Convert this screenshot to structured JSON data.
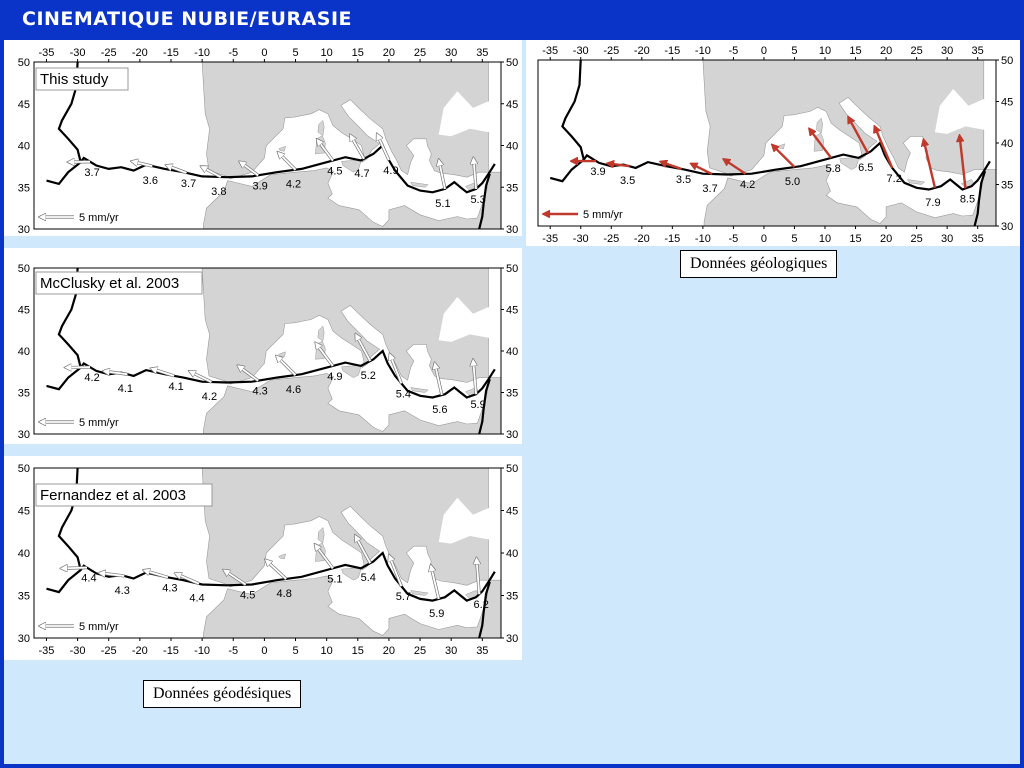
{
  "title": "CINEMATIQUE NUBIE/EURASIE",
  "captions": {
    "geodetic": "Données géodésiques",
    "geologic": "Données géologiques"
  },
  "axes": {
    "lon_ticks": [
      "-35",
      "-30",
      "-25",
      "-20",
      "-15",
      "-10",
      "-5",
      "0",
      "5",
      "10",
      "15",
      "20",
      "25",
      "30",
      "35"
    ],
    "lat_ticks": [
      "50",
      "45",
      "40",
      "35",
      "30"
    ]
  },
  "panels": [
    {
      "id": "this-study",
      "label": "This study",
      "scale_label": "5   mm/yr",
      "vectors": [
        {
          "lon": -28,
          "text": "3.7"
        },
        {
          "lon": -18,
          "text": "3.6"
        },
        {
          "lon": -12.5,
          "text": "3.7"
        },
        {
          "lon": -7,
          "text": "3.8"
        },
        {
          "lon": -1,
          "text": "3.9"
        },
        {
          "lon": 5,
          "text": "4.2"
        },
        {
          "lon": 11,
          "text": "4.5"
        },
        {
          "lon": 16,
          "text": "4.7"
        },
        {
          "lon": 20,
          "text": "4.9"
        },
        {
          "lon": 29,
          "text": "5.1"
        },
        {
          "lon": 34,
          "text": "5.3"
        }
      ],
      "arrow_color": "#ffffff"
    },
    {
      "id": "mcclusky",
      "label": "McClusky et al. 2003",
      "scale_label": "5 mm/yr",
      "vectors": [
        {
          "lon": -28,
          "text": "4.2"
        },
        {
          "lon": -22,
          "text": "4.1"
        },
        {
          "lon": -14.5,
          "text": "4.1"
        },
        {
          "lon": -8.5,
          "text": "4.2"
        },
        {
          "lon": -1,
          "text": "4.3"
        },
        {
          "lon": 5,
          "text": "4.6"
        },
        {
          "lon": 11,
          "text": "4.9"
        },
        {
          "lon": 17,
          "text": "5.2"
        },
        {
          "lon": 22,
          "text": "5.4"
        },
        {
          "lon": 28.5,
          "text": "5.6"
        },
        {
          "lon": 34,
          "text": "5.9"
        }
      ],
      "arrow_color": "#ffffff"
    },
    {
      "id": "fernandez",
      "label": "Fernandez et al. 2003",
      "scale_label": "5 mm/yr",
      "vectors": [
        {
          "lon": -28.5,
          "text": "4.4"
        },
        {
          "lon": -22.5,
          "text": "4.3"
        },
        {
          "lon": -15.5,
          "text": "4.3"
        },
        {
          "lon": -10.5,
          "text": "4.4"
        },
        {
          "lon": -3,
          "text": "4.5"
        },
        {
          "lon": 3.5,
          "text": "4.8"
        },
        {
          "lon": 11,
          "text": "5.1"
        },
        {
          "lon": 17,
          "text": "5.4"
        },
        {
          "lon": 22,
          "text": "5.7"
        },
        {
          "lon": 28,
          "text": "5.9"
        },
        {
          "lon": 34.5,
          "text": "6.2"
        }
      ],
      "arrow_color": "#ffffff"
    },
    {
      "id": "geologic",
      "label": "",
      "scale_label": "5 mm/yr",
      "vectors": [
        {
          "lon": -27.5,
          "text": "3.9"
        },
        {
          "lon": -22,
          "text": "3.5"
        },
        {
          "lon": -13.5,
          "text": "3.5"
        },
        {
          "lon": -8.5,
          "text": "3.7"
        },
        {
          "lon": -3,
          "text": "4.2"
        },
        {
          "lon": 5,
          "text": "5.0"
        },
        {
          "lon": 11,
          "text": "5.8"
        },
        {
          "lon": 17,
          "text": "6.5"
        },
        {
          "lon": 21,
          "text": "7.2"
        },
        {
          "lon": 28,
          "text": "7.9"
        },
        {
          "lon": 33,
          "text": "8.5"
        }
      ],
      "arrow_color": "#c0392b"
    }
  ],
  "colors": {
    "land": "#d4d4d4",
    "sea": "#ffffff",
    "boundary": "#000000",
    "background": "#0a34c8",
    "content": "#cfe8fb"
  }
}
